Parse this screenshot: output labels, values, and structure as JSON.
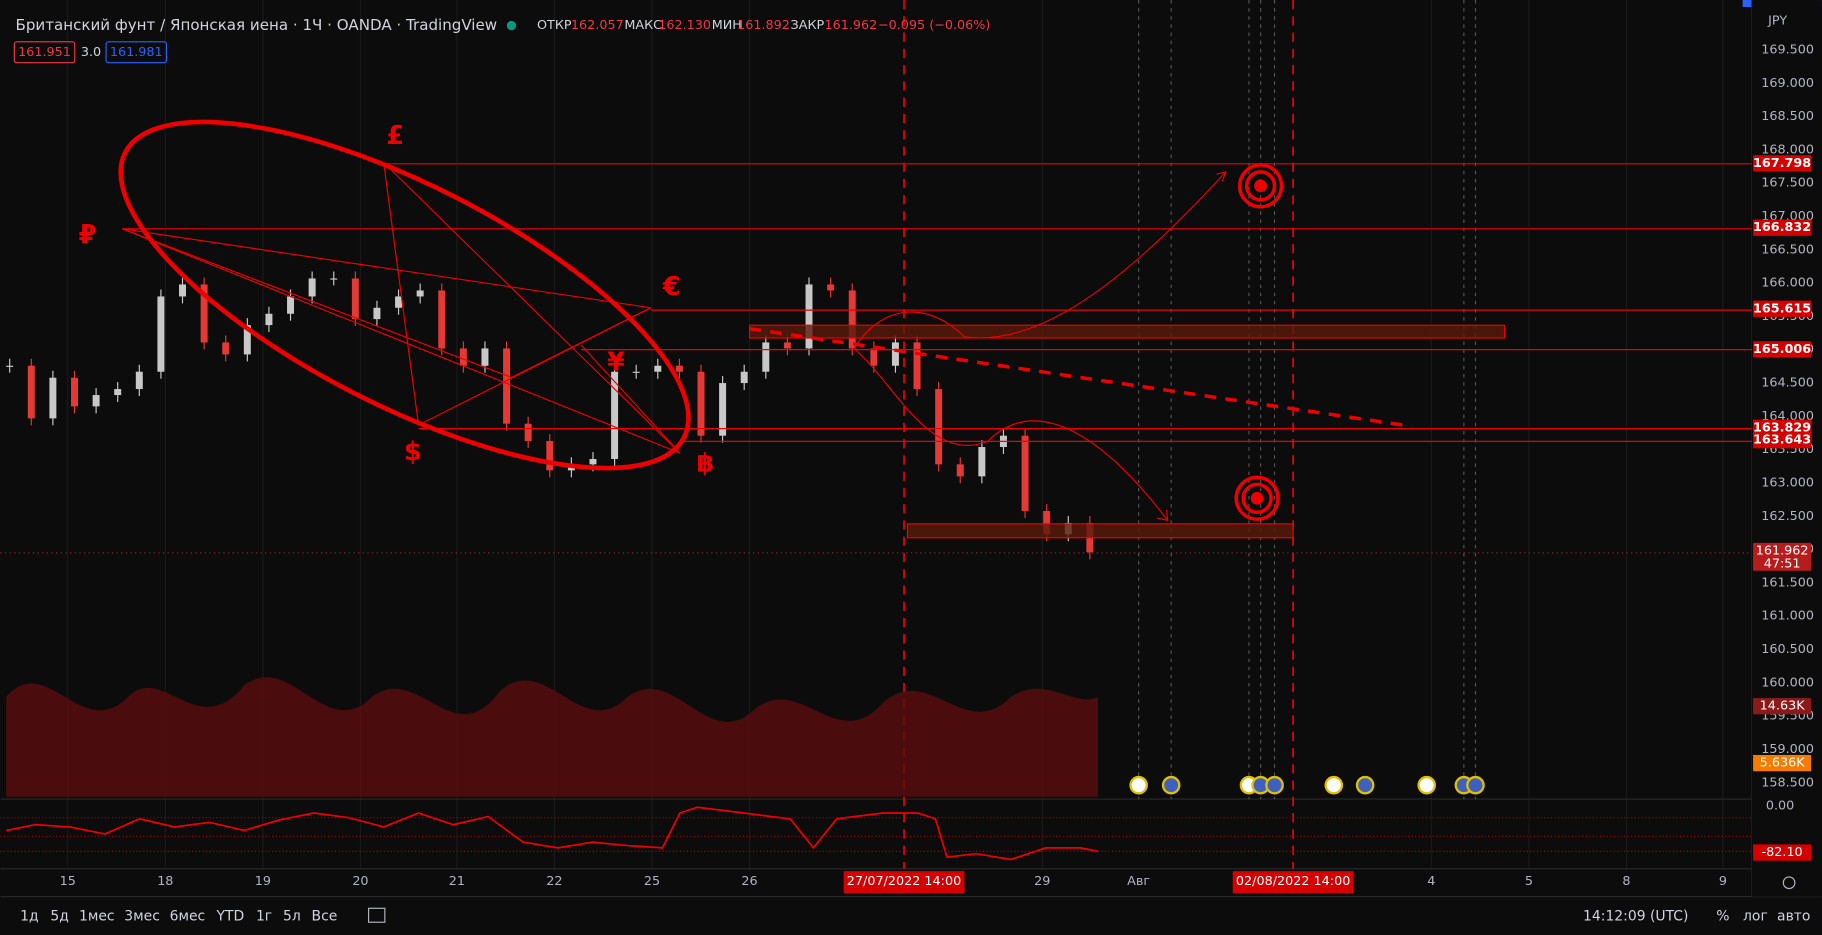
{
  "header": {
    "symbol": "Британский фунт / Японская иена · 1Ч · OANDA · TradingView",
    "ohlc": [
      {
        "label": "ОТКР",
        "value": "162.057"
      },
      {
        "label": "МАКС",
        "value": "162.130"
      },
      {
        "label": "МИН",
        "value": "161.892"
      },
      {
        "label": "ЗАКР",
        "value": "161.962"
      }
    ],
    "change": "−0.095 (−0.06%)",
    "sell": "161.951",
    "spread": "3.0",
    "buy": "161.981"
  },
  "price_axis": {
    "currency": "JPY",
    "labels": [
      "169.500",
      "169.000",
      "168.500",
      "168.000",
      "167.500",
      "167.000",
      "166.500",
      "166.000",
      "165.500",
      "165.000",
      "164.500",
      "164.000",
      "163.500",
      "163.000",
      "162.500",
      "162.000",
      "161.500",
      "161.000",
      "160.500",
      "160.000",
      "159.500",
      "159.000",
      "158.500"
    ],
    "badges": [
      {
        "text": "167.798",
        "price": 167.798
      },
      {
        "text": "166.832",
        "price": 166.832
      },
      {
        "text": "165.615",
        "price": 165.615
      },
      {
        "text": "165.006",
        "price": 165.006
      },
      {
        "text": "163.829",
        "price": 163.829
      },
      {
        "text": "163.643",
        "price": 163.643
      }
    ],
    "last": {
      "text": "161.962",
      "price": 161.962,
      "countdown": "47:51"
    },
    "volume_badges": [
      "14.63K",
      "5.636K"
    ],
    "oscillator_badges": [
      "0.00",
      "-82.10"
    ]
  },
  "time_axis": {
    "labels": [
      "15",
      "18",
      "19",
      "20",
      "21",
      "22",
      "25",
      "26",
      "29",
      "Авг",
      "4",
      "5",
      "8",
      "9"
    ],
    "highlighted": [
      "27/07/2022  14:00",
      "02/08/2022  14:00"
    ]
  },
  "drawings": {
    "symbols": [
      "£",
      "₽",
      "€",
      "¥",
      "$",
      "฿"
    ]
  },
  "chart": {
    "closes": [
      164.76,
      163.97,
      164.58,
      164.15,
      164.32,
      164.41,
      164.67,
      165.8,
      165.98,
      165.11,
      164.93,
      165.37,
      165.54,
      165.8,
      166.07,
      166.07,
      165.46,
      165.63,
      165.8,
      165.89,
      165.02,
      164.76,
      165.02,
      163.89,
      163.63,
      163.19,
      163.28,
      163.36,
      164.67,
      164.67,
      164.76,
      164.67,
      163.71,
      164.5,
      164.67,
      165.11,
      165.02,
      165.98,
      165.89,
      165.02,
      164.76,
      165.11,
      164.41,
      163.28,
      163.1,
      163.54,
      163.71,
      162.58,
      162.23,
      162.4,
      161.96
    ]
  },
  "toolbar": {
    "ranges": [
      "1д",
      "5д",
      "1мес",
      "3мес",
      "6мес",
      "YTD",
      "1г",
      "5л",
      "Все"
    ],
    "clock": "14:12:09 (UTC)",
    "options": [
      "%",
      "лог",
      "авто"
    ]
  }
}
